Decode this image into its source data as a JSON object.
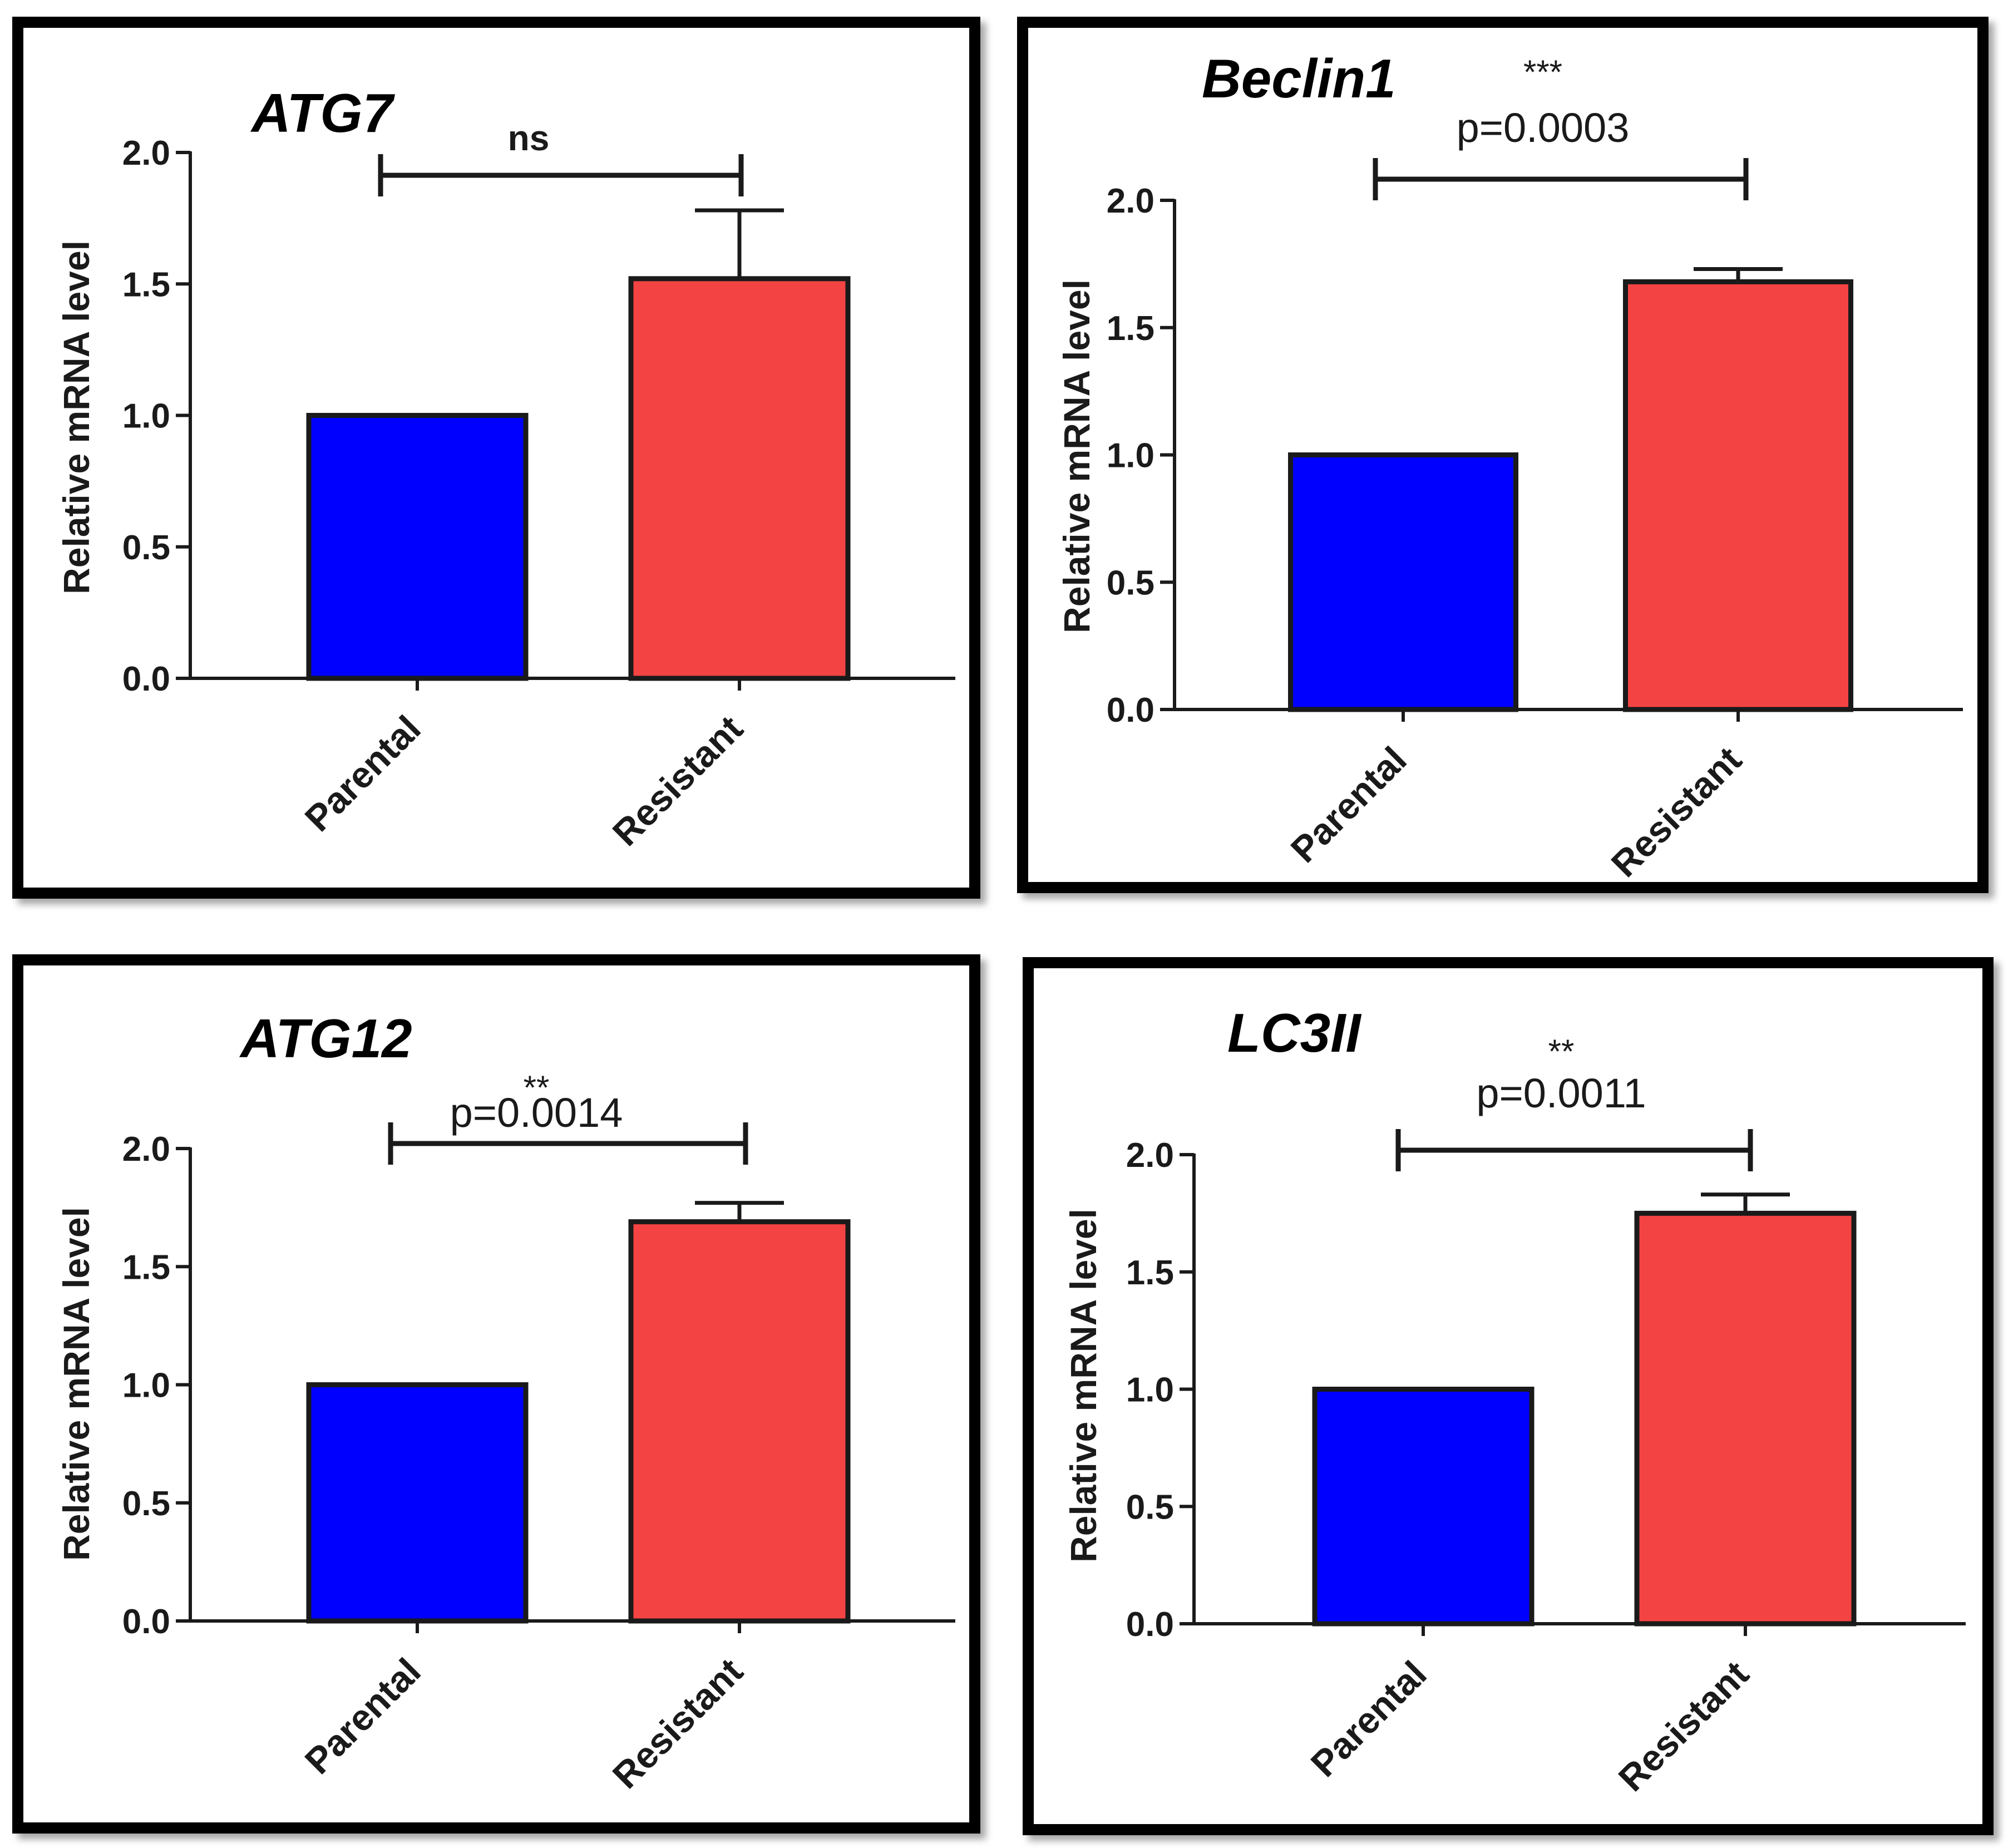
{
  "colors": {
    "parental": "#0000ff",
    "resistant": "#f44343",
    "frame": "#000000"
  },
  "chart_data": [
    {
      "type": "bar",
      "title": "ATG7",
      "categories": [
        "Parental",
        "Resistant"
      ],
      "values": [
        1.0,
        1.52
      ],
      "errors": [
        0,
        0.26
      ],
      "ylabel": "Relative mRNA level",
      "xlabel": "",
      "ylim": [
        0,
        2.0
      ],
      "yticks": [
        "0.0",
        "0.5",
        "1.0",
        "1.5",
        "2.0"
      ],
      "significance": {
        "stars": "ns",
        "pvalue": ""
      }
    },
    {
      "type": "bar",
      "title": "Beclin1",
      "categories": [
        "Parental",
        "Resistant"
      ],
      "values": [
        1.0,
        1.68
      ],
      "errors": [
        0,
        0.05
      ],
      "ylabel": "Relative mRNA level",
      "xlabel": "",
      "ylim": [
        0,
        2.0
      ],
      "yticks": [
        "0.0",
        "0.5",
        "1.0",
        "1.5",
        "2.0"
      ],
      "significance": {
        "stars": "***",
        "pvalue": "p=0.0003"
      }
    },
    {
      "type": "bar",
      "title": "ATG12",
      "categories": [
        "Parental",
        "Resistant"
      ],
      "values": [
        1.0,
        1.69
      ],
      "errors": [
        0,
        0.08
      ],
      "ylabel": "Relative mRNA level",
      "xlabel": "",
      "ylim": [
        0,
        2.0
      ],
      "yticks": [
        "0.0",
        "0.5",
        "1.0",
        "1.5",
        "2.0"
      ],
      "significance": {
        "stars": "**",
        "pvalue": "p=0.0014"
      }
    },
    {
      "type": "bar",
      "title": "LC3II",
      "categories": [
        "Parental",
        "Resistant"
      ],
      "values": [
        1.0,
        1.75
      ],
      "errors": [
        0,
        0.08
      ],
      "ylabel": "Relative mRNA level",
      "xlabel": "",
      "ylim": [
        0,
        2.0
      ],
      "yticks": [
        "0.0",
        "0.5",
        "1.0",
        "1.5",
        "2.0"
      ],
      "significance": {
        "stars": "**",
        "pvalue": "p=0.0011"
      }
    }
  ]
}
